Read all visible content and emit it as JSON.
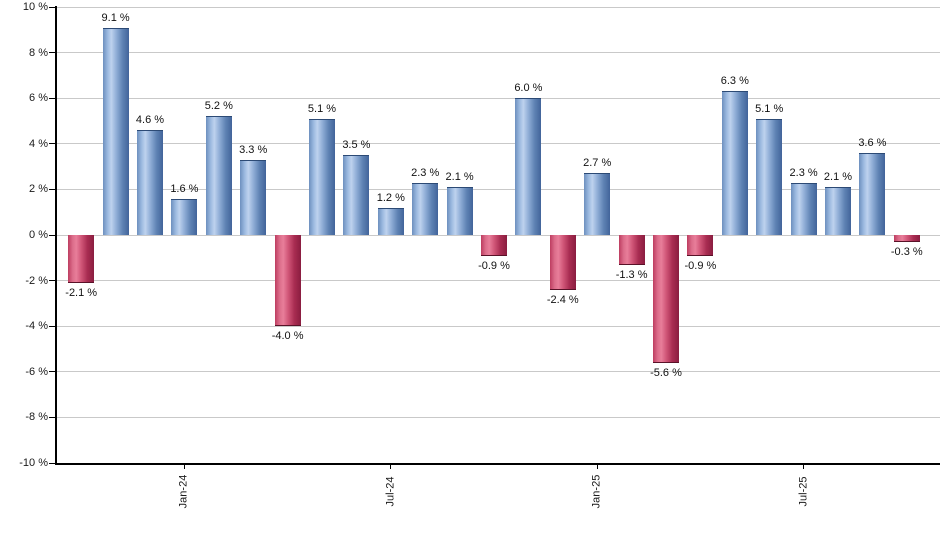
{
  "chart_data": {
    "type": "bar",
    "title": "",
    "values": [
      -2.1,
      9.1,
      4.6,
      1.6,
      5.2,
      3.3,
      -4.0,
      5.1,
      3.5,
      1.2,
      2.3,
      2.1,
      -0.9,
      6.0,
      -2.4,
      2.7,
      -1.3,
      -5.6,
      -0.9,
      6.3,
      5.1,
      2.3,
      2.1,
      3.6,
      -0.3
    ],
    "bar_value_labels": [
      "-2.1 %",
      "9.1 %",
      "4.6 %",
      "1.6 %",
      "5.2 %",
      "3.3 %",
      "-4.0 %",
      "5.1 %",
      "3.5 %",
      "1.2 %",
      "2.3 %",
      "2.1 %",
      "-0.9 %",
      "6.0 %",
      "-2.4 %",
      "2.7 %",
      "-1.3 %",
      "-5.6 %",
      "-0.9 %",
      "6.3 %",
      "5.1 %",
      "2.3 %",
      "2.1 %",
      "3.6 %",
      "-0.3 %"
    ],
    "x_tick_labels": [
      {
        "bar_index": 3,
        "label": "Jan-24"
      },
      {
        "bar_index": 9,
        "label": "Jul-24"
      },
      {
        "bar_index": 15,
        "label": "Jan-25"
      },
      {
        "bar_index": 21,
        "label": "Jul-25"
      }
    ],
    "y_tick_labels": [
      "10 %",
      "8 %",
      "6 %",
      "4 %",
      "2 %",
      "0 %",
      "-2 %",
      "-4 %",
      "-6 %",
      "-8 %",
      "-10 %"
    ],
    "ylim": [
      -10,
      10
    ],
    "y_step": 2,
    "grid": true,
    "legend": "none",
    "colors": {
      "positive_bar": "#7094c4",
      "negative_bar": "#c53e62",
      "gridline": "#c9c9c9",
      "axis": "#000000",
      "label_text": "#111111",
      "background": "#ffffff"
    }
  }
}
